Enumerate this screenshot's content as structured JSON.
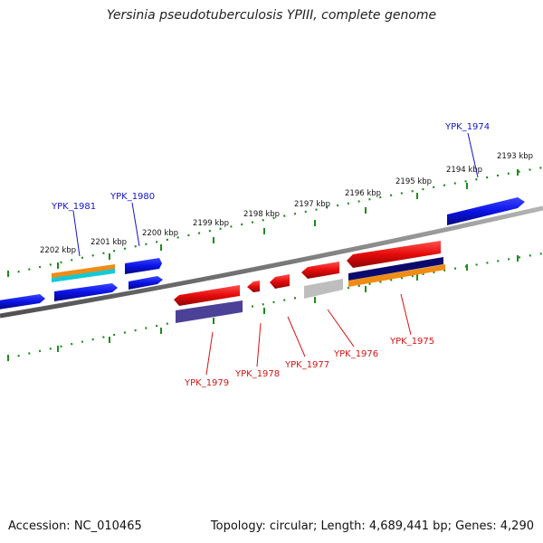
{
  "title": "Yersinia pseudotuberculosis YPIII, complete genome",
  "footer": {
    "accession": "Accession: NC_010465",
    "topology": "Topology: circular; Length: 4,689,441 bp; Genes: 4,290"
  },
  "colors": {
    "backbone": "#7a7a7a",
    "tick": "#1e8c1e",
    "forward_gene": "#0a12e6",
    "reverse_gene": "#e60a0a",
    "forward_label": "#1414c8",
    "reverse_label": "#d21414",
    "orange_feature": "#f08c14",
    "cyan_feature": "#14c8d7",
    "navy_feature": "#0a0a6e",
    "slate_feature": "#4b4196",
    "gray_feature": "#bebebe"
  },
  "scale": {
    "labels": [
      "2202 kbp",
      "2201 kbp",
      "2200 kbp",
      "2199 kbp",
      "2198 kbp",
      "2197 kbp",
      "2196 kbp",
      "2195 kbp",
      "2194 kbp",
      "2193 kbp"
    ]
  },
  "genes": {
    "forward": [
      {
        "id": "YPK_1974",
        "label": "YPK_1974"
      },
      {
        "id": "YPK_1980",
        "label": "YPK_1980"
      },
      {
        "id": "YPK_1981",
        "label": "YPK_1981"
      }
    ],
    "reverse": [
      {
        "id": "YPK_1975",
        "label": "YPK_1975"
      },
      {
        "id": "YPK_1976",
        "label": "YPK_1976"
      },
      {
        "id": "YPK_1977",
        "label": "YPK_1977"
      },
      {
        "id": "YPK_1978",
        "label": "YPK_1978"
      },
      {
        "id": "YPK_1979",
        "label": "YPK_1979"
      }
    ]
  }
}
